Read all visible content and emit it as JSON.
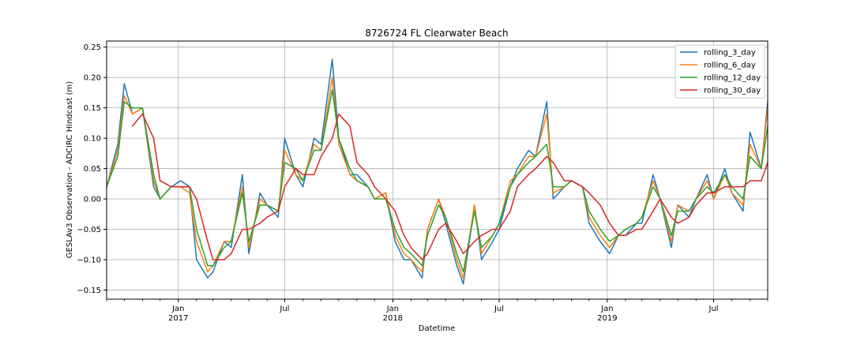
{
  "chart_data": {
    "type": "line",
    "title": "8726724 FL Clearwater Beach",
    "xlabel": "Datetime",
    "ylabel": "GESLAv3 Observation - ADCIRC Hindcast (m)",
    "ylim": [
      -0.165,
      0.26
    ],
    "xlim": [
      "2016-09-01",
      "2019-10-01"
    ],
    "yticks": [
      -0.15,
      -0.1,
      -0.05,
      0.0,
      0.05,
      0.1,
      0.15,
      0.2,
      0.25
    ],
    "ytick_labels": [
      "−0.15",
      "−0.10",
      "−0.05",
      "0.00",
      "0.05",
      "0.10",
      "0.15",
      "0.20",
      "0.25"
    ],
    "major_xticks": [
      {
        "date": "2017-01-01",
        "label": "Jan",
        "year": "2017"
      },
      {
        "date": "2017-07-01",
        "label": "Jul",
        "year": ""
      },
      {
        "date": "2018-01-01",
        "label": "Jan",
        "year": "2018"
      },
      {
        "date": "2018-07-01",
        "label": "Jul",
        "year": ""
      },
      {
        "date": "2019-01-01",
        "label": "Jan",
        "year": "2019"
      },
      {
        "date": "2019-07-01",
        "label": "Jul",
        "year": ""
      }
    ],
    "grid": true,
    "legend_position": "top-right",
    "anchor_dates": [
      "2016-09-01",
      "2016-09-20",
      "2016-10-01",
      "2016-10-15",
      "2016-11-01",
      "2016-11-20",
      "2016-12-01",
      "2016-12-20",
      "2017-01-05",
      "2017-01-20",
      "2017-02-01",
      "2017-02-20",
      "2017-03-01",
      "2017-03-20",
      "2017-04-01",
      "2017-04-20",
      "2017-05-01",
      "2017-05-20",
      "2017-06-01",
      "2017-06-20",
      "2017-07-01",
      "2017-07-20",
      "2017-08-01",
      "2017-08-20",
      "2017-09-01",
      "2017-09-20",
      "2017-10-01",
      "2017-10-20",
      "2017-11-01",
      "2017-11-20",
      "2017-12-01",
      "2017-12-20",
      "2018-01-05",
      "2018-01-20",
      "2018-02-01",
      "2018-02-20",
      "2018-03-01",
      "2018-03-20",
      "2018-04-01",
      "2018-04-20",
      "2018-05-01",
      "2018-05-20",
      "2018-06-01",
      "2018-06-20",
      "2018-07-01",
      "2018-07-20",
      "2018-08-01",
      "2018-08-20",
      "2018-09-01",
      "2018-09-20",
      "2018-10-01",
      "2018-10-20",
      "2018-11-01",
      "2018-11-20",
      "2018-12-01",
      "2018-12-20",
      "2019-01-05",
      "2019-01-20",
      "2019-02-01",
      "2019-02-20",
      "2019-03-01",
      "2019-03-20",
      "2019-04-01",
      "2019-04-20",
      "2019-05-01",
      "2019-05-20",
      "2019-06-01",
      "2019-06-20",
      "2019-07-01",
      "2019-07-20",
      "2019-08-01",
      "2019-08-20",
      "2019-09-01",
      "2019-09-20",
      "2019-10-01"
    ],
    "series": [
      {
        "name": "rolling_3_day",
        "color": "#1f77b4",
        "values": [
          0.02,
          0.09,
          0.19,
          0.14,
          0.15,
          0.02,
          0.0,
          0.02,
          0.03,
          0.02,
          -0.1,
          -0.13,
          -0.12,
          -0.07,
          -0.08,
          0.04,
          -0.09,
          0.01,
          -0.01,
          -0.03,
          0.1,
          0.04,
          0.02,
          0.1,
          0.09,
          0.23,
          0.1,
          0.04,
          0.04,
          0.02,
          0.0,
          0.01,
          -0.07,
          -0.1,
          -0.1,
          -0.13,
          -0.05,
          0.0,
          -0.04,
          -0.11,
          -0.14,
          -0.01,
          -0.1,
          -0.07,
          -0.05,
          0.02,
          0.05,
          0.08,
          0.07,
          0.16,
          0.0,
          0.02,
          0.03,
          0.02,
          -0.04,
          -0.07,
          -0.09,
          -0.06,
          -0.06,
          -0.04,
          -0.04,
          0.04,
          0.0,
          -0.08,
          -0.01,
          -0.03,
          0.0,
          0.04,
          0.0,
          0.05,
          0.01,
          -0.02,
          0.11,
          0.05,
          0.16
        ]
      },
      {
        "name": "rolling_6_day",
        "color": "#ff7f0e",
        "values": [
          0.02,
          0.08,
          0.17,
          0.14,
          0.15,
          0.03,
          0.0,
          0.02,
          0.02,
          0.01,
          -0.07,
          -0.12,
          -0.11,
          -0.07,
          -0.07,
          0.02,
          -0.08,
          0.0,
          -0.01,
          -0.02,
          0.08,
          0.04,
          0.03,
          0.09,
          0.08,
          0.2,
          0.09,
          0.04,
          0.03,
          0.02,
          0.0,
          0.01,
          -0.06,
          -0.09,
          -0.1,
          -0.12,
          -0.05,
          0.0,
          -0.03,
          -0.1,
          -0.13,
          -0.01,
          -0.09,
          -0.06,
          -0.04,
          0.03,
          0.04,
          0.07,
          0.07,
          0.14,
          0.01,
          0.02,
          0.03,
          0.02,
          -0.03,
          -0.06,
          -0.08,
          -0.06,
          -0.05,
          -0.04,
          -0.03,
          0.03,
          0.0,
          -0.07,
          -0.01,
          -0.02,
          0.0,
          0.03,
          0.0,
          0.04,
          0.01,
          -0.01,
          0.09,
          0.05,
          0.15
        ]
      },
      {
        "name": "rolling_12_day",
        "color": "#2ca02c",
        "values": [
          0.02,
          0.07,
          0.16,
          0.15,
          0.15,
          0.04,
          0.0,
          0.02,
          0.02,
          0.02,
          -0.05,
          -0.11,
          -0.11,
          -0.08,
          -0.07,
          0.01,
          -0.07,
          -0.01,
          -0.01,
          -0.02,
          0.06,
          0.05,
          0.03,
          0.08,
          0.08,
          0.18,
          0.1,
          0.05,
          0.03,
          0.02,
          0.0,
          0.0,
          -0.05,
          -0.08,
          -0.09,
          -0.11,
          -0.06,
          -0.01,
          -0.03,
          -0.09,
          -0.12,
          -0.02,
          -0.08,
          -0.06,
          -0.04,
          0.02,
          0.04,
          0.06,
          0.07,
          0.09,
          0.02,
          0.02,
          0.03,
          0.02,
          -0.02,
          -0.05,
          -0.07,
          -0.06,
          -0.05,
          -0.04,
          -0.03,
          0.02,
          0.0,
          -0.06,
          -0.02,
          -0.02,
          0.0,
          0.02,
          0.01,
          0.04,
          0.02,
          -0.0,
          0.07,
          0.05,
          0.12
        ]
      },
      {
        "name": "rolling_30_day",
        "color": "#d62728",
        "values": [
          null,
          null,
          null,
          0.12,
          0.14,
          0.1,
          0.03,
          0.02,
          0.02,
          0.02,
          0.0,
          -0.07,
          -0.1,
          -0.1,
          -0.09,
          -0.05,
          -0.05,
          -0.04,
          -0.03,
          -0.02,
          0.02,
          0.05,
          0.04,
          0.04,
          0.07,
          0.1,
          0.14,
          0.12,
          0.06,
          0.04,
          0.02,
          0.0,
          -0.02,
          -0.06,
          -0.08,
          -0.1,
          -0.09,
          -0.05,
          -0.04,
          -0.07,
          -0.09,
          -0.07,
          -0.06,
          -0.05,
          -0.05,
          -0.02,
          0.02,
          0.04,
          0.05,
          0.07,
          0.06,
          0.03,
          0.03,
          0.02,
          0.01,
          -0.01,
          -0.04,
          -0.06,
          -0.06,
          -0.05,
          -0.05,
          -0.02,
          0.0,
          -0.03,
          -0.04,
          -0.03,
          -0.01,
          0.01,
          0.01,
          0.02,
          0.02,
          0.02,
          0.03,
          0.03,
          0.06
        ]
      }
    ]
  }
}
